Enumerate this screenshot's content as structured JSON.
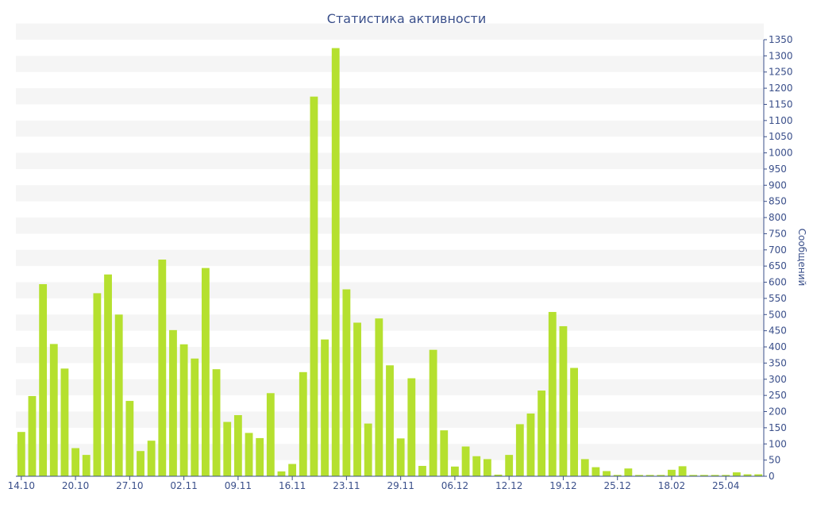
{
  "chart_data": {
    "type": "bar",
    "title": "Статистика активности",
    "ylabel": "Сообщений",
    "xlabel": "",
    "ylim": [
      0,
      1350
    ],
    "y_tick_step": 50,
    "y_axis_position": "right",
    "grid": "alternating horizontal bands",
    "legend": "none",
    "bar_color": "#b5e02f",
    "band_color": "#f5f5f5",
    "axis_color": "#3a4f8a",
    "x_tick_labels": [
      {
        "index": 0,
        "label": "14.10"
      },
      {
        "index": 5,
        "label": "20.10"
      },
      {
        "index": 10,
        "label": "27.10"
      },
      {
        "index": 15,
        "label": "02.11"
      },
      {
        "index": 20,
        "label": "09.11"
      },
      {
        "index": 25,
        "label": "16.11"
      },
      {
        "index": 30,
        "label": "23.11"
      },
      {
        "index": 35,
        "label": "29.11"
      },
      {
        "index": 40,
        "label": "06.12"
      },
      {
        "index": 45,
        "label": "12.12"
      },
      {
        "index": 50,
        "label": "19.12"
      },
      {
        "index": 55,
        "label": "25.12"
      },
      {
        "index": 60,
        "label": "18.02"
      },
      {
        "index": 65,
        "label": "25.04"
      }
    ],
    "values": [
      137,
      248,
      594,
      409,
      333,
      87,
      66,
      566,
      624,
      500,
      233,
      78,
      110,
      670,
      452,
      408,
      364,
      644,
      331,
      168,
      189,
      134,
      118,
      257,
      15,
      38,
      322,
      1174,
      423,
      1324,
      578,
      475,
      163,
      488,
      343,
      117,
      303,
      32,
      391,
      142,
      30,
      92,
      62,
      53,
      5,
      66,
      161,
      194,
      265,
      508,
      464,
      335,
      53,
      28,
      16,
      4,
      24,
      4,
      4,
      4,
      20,
      31,
      4,
      4,
      4,
      4,
      12,
      6,
      6
    ]
  }
}
